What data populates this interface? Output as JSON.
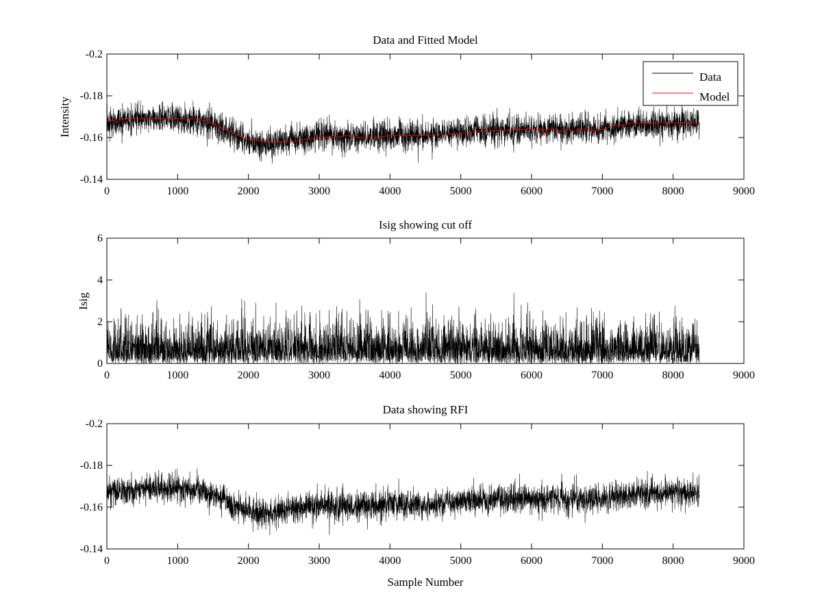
{
  "chart_data": [
    {
      "type": "line",
      "title": "Data and Fitted Model",
      "xlabel": "",
      "ylabel": "Intensity",
      "xlim": [
        0,
        9000
      ],
      "ylim": [
        -0.2,
        -0.14
      ],
      "xticks": [
        0,
        1000,
        2000,
        3000,
        4000,
        5000,
        6000,
        7000,
        8000,
        9000
      ],
      "xtick_labels": [
        "0",
        "1000",
        "2000",
        "3000",
        "4000",
        "5000",
        "6000",
        "7000",
        "8000",
        "9000"
      ],
      "yticks": [
        -0.2,
        -0.18,
        -0.16,
        -0.14
      ],
      "ytick_labels": [
        "-0.2",
        "-0.18",
        "-0.16",
        "-0.14"
      ],
      "y_reversed": true,
      "grid": false,
      "legend": {
        "position": "top-right",
        "entries": [
          {
            "label": "Data",
            "color": "#000000"
          },
          {
            "label": "Model",
            "color": "#ff0000"
          }
        ]
      },
      "series": [
        {
          "name": "Data",
          "color": "#000000",
          "kind": "noisy",
          "n_samples": 8370,
          "noise_std": 0.0035,
          "baseline_x": [
            0,
            500,
            1000,
            1300,
            1600,
            1800,
            2000,
            2300,
            2600,
            3000,
            3500,
            4000,
            4500,
            5000,
            6000,
            6400,
            7000,
            7500,
            8000,
            8370
          ],
          "baseline_y": [
            -0.167,
            -0.169,
            -0.169,
            -0.168,
            -0.165,
            -0.161,
            -0.158,
            -0.157,
            -0.159,
            -0.161,
            -0.16,
            -0.161,
            -0.161,
            -0.163,
            -0.164,
            -0.164,
            -0.164,
            -0.166,
            -0.167,
            -0.167
          ]
        },
        {
          "name": "Model",
          "color": "#ff0000",
          "kind": "line",
          "x": [
            0,
            100,
            150,
            200,
            500,
            1000,
            1200,
            1400,
            1600,
            1800,
            2000,
            2300,
            2600,
            2800,
            3000,
            3200,
            3400,
            3500,
            3800,
            4000,
            4500,
            5000,
            5200,
            6000,
            6150,
            6180,
            6200,
            6300,
            6400,
            6500,
            6600,
            6700,
            6800,
            6900,
            7000,
            7100,
            7200,
            7300,
            7400,
            8000,
            8370
          ],
          "y": [
            -0.168,
            -0.168,
            -0.167,
            -0.169,
            -0.169,
            -0.169,
            -0.169,
            -0.168,
            -0.165,
            -0.162,
            -0.159,
            -0.158,
            -0.158,
            -0.159,
            -0.16,
            -0.16,
            -0.161,
            -0.16,
            -0.16,
            -0.161,
            -0.161,
            -0.162,
            -0.163,
            -0.164,
            -0.164,
            -0.161,
            -0.164,
            -0.164,
            -0.163,
            -0.164,
            -0.163,
            -0.164,
            -0.164,
            -0.163,
            -0.164,
            -0.165,
            -0.166,
            -0.166,
            -0.167,
            -0.167,
            -0.167
          ]
        }
      ]
    },
    {
      "type": "line",
      "title": "Isig showing cut off",
      "xlabel": "",
      "ylabel": "Isig",
      "xlim": [
        0,
        9000
      ],
      "ylim": [
        0,
        6
      ],
      "xticks": [
        0,
        1000,
        2000,
        3000,
        4000,
        5000,
        6000,
        7000,
        8000,
        9000
      ],
      "xtick_labels": [
        "0",
        "1000",
        "2000",
        "3000",
        "4000",
        "5000",
        "6000",
        "7000",
        "8000",
        "9000"
      ],
      "yticks": [
        0,
        2,
        4,
        6
      ],
      "ytick_labels": [
        "0",
        "2",
        "4",
        "6"
      ],
      "y_reversed": false,
      "grid": false,
      "series": [
        {
          "name": "",
          "color": "#000000",
          "kind": "absnoise",
          "n_samples": 8370,
          "noise_scale": 0.95,
          "max_value": 3.6
        }
      ]
    },
    {
      "type": "line",
      "title": "Data showing RFI",
      "xlabel": "Sample Number",
      "ylabel": "",
      "xlim": [
        0,
        9000
      ],
      "ylim": [
        -0.2,
        -0.14
      ],
      "xticks": [
        0,
        1000,
        2000,
        3000,
        4000,
        5000,
        6000,
        7000,
        8000,
        9000
      ],
      "xtick_labels": [
        "0",
        "1000",
        "2000",
        "3000",
        "4000",
        "5000",
        "6000",
        "7000",
        "8000",
        "9000"
      ],
      "yticks": [
        -0.2,
        -0.18,
        -0.16,
        -0.14
      ],
      "ytick_labels": [
        "-0.2",
        "-0.18",
        "-0.16",
        "-0.14"
      ],
      "y_reversed": true,
      "grid": false,
      "series": [
        {
          "name": "",
          "color": "#000000",
          "kind": "noisy",
          "n_samples": 8370,
          "noise_std": 0.0035,
          "baseline_x": [
            0,
            500,
            1000,
            1300,
            1600,
            1800,
            2000,
            2300,
            2600,
            3000,
            3500,
            4000,
            4500,
            5000,
            6000,
            6400,
            7000,
            7500,
            8000,
            8370
          ],
          "baseline_y": [
            -0.167,
            -0.169,
            -0.169,
            -0.168,
            -0.165,
            -0.161,
            -0.158,
            -0.157,
            -0.159,
            -0.161,
            -0.16,
            -0.161,
            -0.161,
            -0.163,
            -0.164,
            -0.164,
            -0.164,
            -0.166,
            -0.167,
            -0.167
          ]
        }
      ]
    }
  ]
}
